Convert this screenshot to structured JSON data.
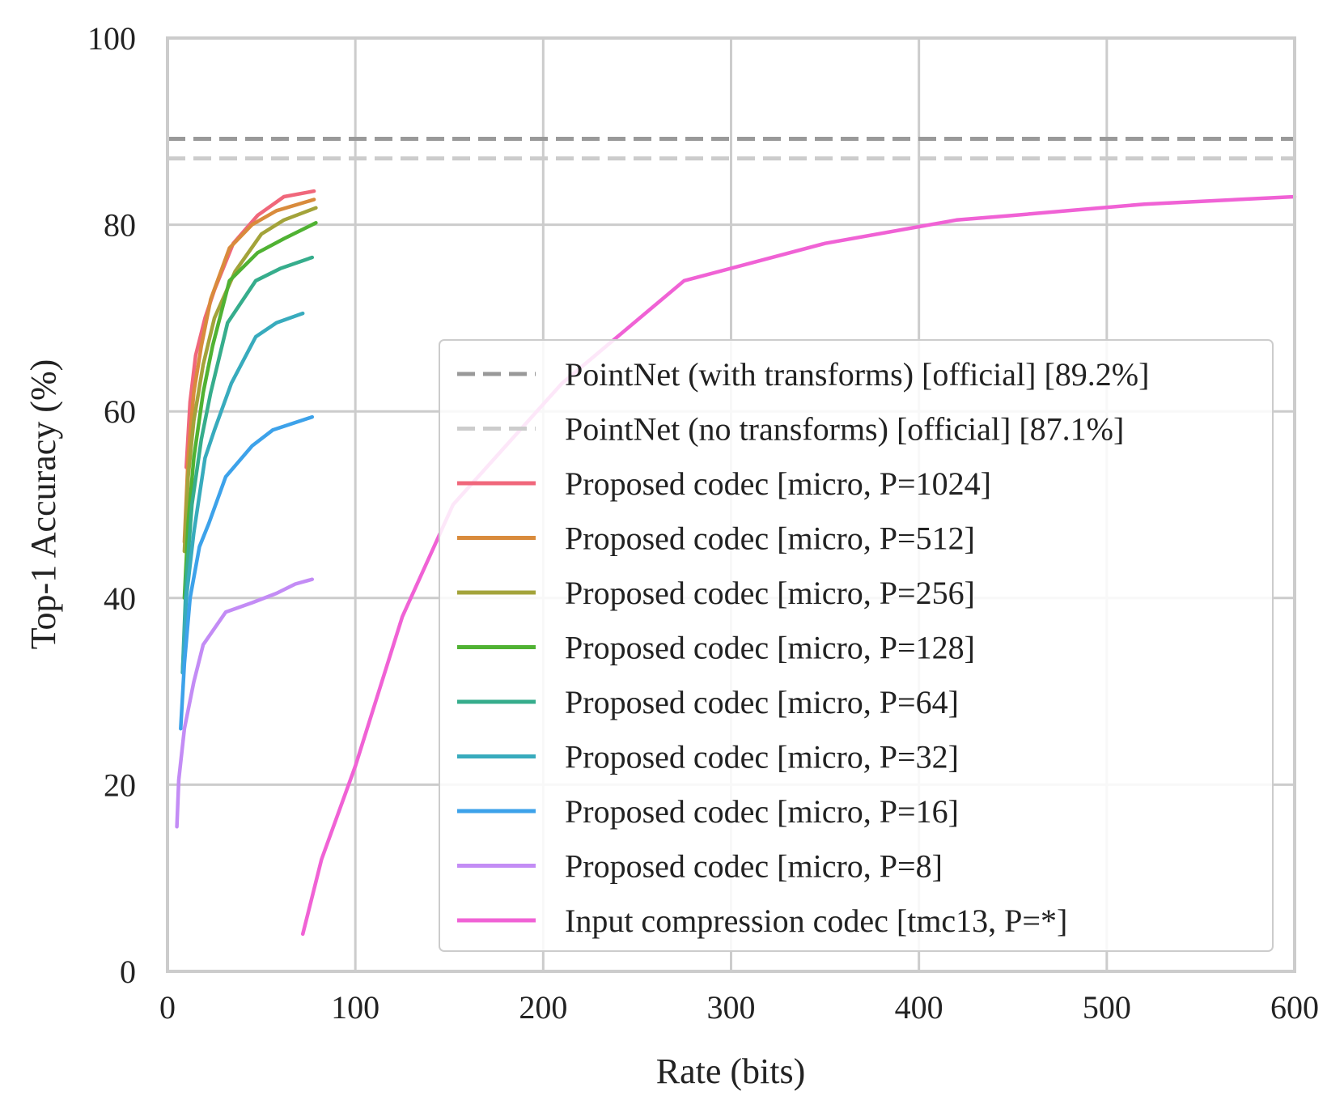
{
  "chart_data": {
    "type": "line",
    "title": "",
    "xlabel": "Rate (bits)",
    "ylabel": "Top-1 Accuracy (%)",
    "xlim": [
      0,
      600
    ],
    "ylim": [
      0,
      100
    ],
    "xticks": [
      0,
      100,
      200,
      300,
      400,
      500,
      600
    ],
    "yticks": [
      0,
      20,
      40,
      60,
      80,
      100
    ],
    "grid": true,
    "legend_position": "center-right",
    "reference_lines": [
      {
        "name": "PointNet (with transforms) [official] [89.2%]",
        "value": 89.2,
        "color": "#999999",
        "style": "dashed"
      },
      {
        "name": "PointNet (no transforms) [official] [87.1%]",
        "value": 87.1,
        "color": "#cccccc",
        "style": "dashed"
      }
    ],
    "series": [
      {
        "name": "Proposed codec [micro, P=1024]",
        "color": "#f0677b",
        "x": [
          10,
          12,
          15,
          20,
          25,
          35,
          48,
          62,
          78
        ],
        "y": [
          54,
          61,
          66,
          70,
          73,
          78,
          81,
          83,
          83.6
        ]
      },
      {
        "name": "Proposed codec [micro, P=512]",
        "color": "#d98b3c",
        "x": [
          9,
          11,
          14,
          18,
          23,
          33,
          45,
          58,
          78
        ],
        "y": [
          46,
          55,
          62,
          67,
          72,
          77.5,
          80,
          81.5,
          82.7
        ]
      },
      {
        "name": "Proposed codec [micro, P=256]",
        "color": "#a3a33a",
        "x": [
          9,
          11,
          14,
          19,
          25,
          36,
          50,
          62,
          79
        ],
        "y": [
          45,
          53,
          59,
          65,
          70,
          75,
          79,
          80.5,
          81.8
        ]
      },
      {
        "name": "Proposed codec [micro, P=128]",
        "color": "#50b233",
        "x": [
          9,
          11,
          14,
          19,
          24,
          33,
          48,
          62,
          79
        ],
        "y": [
          40,
          48,
          55,
          62,
          67,
          74,
          77,
          78.5,
          80.2
        ]
      },
      {
        "name": "Proposed codec [micro, P=64]",
        "color": "#36ad8c",
        "x": [
          8,
          10,
          13,
          18,
          23,
          32,
          47,
          60,
          77
        ],
        "y": [
          32,
          42,
          50,
          57,
          62,
          69.5,
          74,
          75.3,
          76.5
        ]
      },
      {
        "name": "Proposed codec [micro, P=32]",
        "color": "#38abbd",
        "x": [
          8,
          10,
          14,
          20,
          25,
          34,
          47,
          58,
          72
        ],
        "y": [
          32,
          40,
          47,
          55,
          58,
          63,
          68,
          69.5,
          70.5
        ]
      },
      {
        "name": "Proposed codec [micro, P=16]",
        "color": "#3da2ea",
        "x": [
          7,
          9,
          12,
          17,
          22,
          31,
          45,
          56,
          77
        ],
        "y": [
          26,
          33,
          40,
          45.5,
          48,
          53,
          56.3,
          58,
          59.4
        ]
      },
      {
        "name": "Proposed codec [micro, P=8]",
        "color": "#c38cf5",
        "x": [
          5,
          6,
          9,
          14,
          19,
          31,
          45,
          58,
          68,
          77
        ],
        "y": [
          15.5,
          20.5,
          26,
          31,
          35,
          38.5,
          39.5,
          40.5,
          41.5,
          42
        ]
      },
      {
        "name": "Input compression codec [tmc13, P=*]",
        "color": "#f062d5",
        "x": [
          72,
          82,
          100,
          125,
          152,
          210,
          275,
          350,
          420,
          450,
          520,
          600
        ],
        "y": [
          4,
          12,
          22,
          38,
          50,
          63,
          74,
          78,
          80.5,
          81,
          82.2,
          83
        ]
      }
    ]
  }
}
